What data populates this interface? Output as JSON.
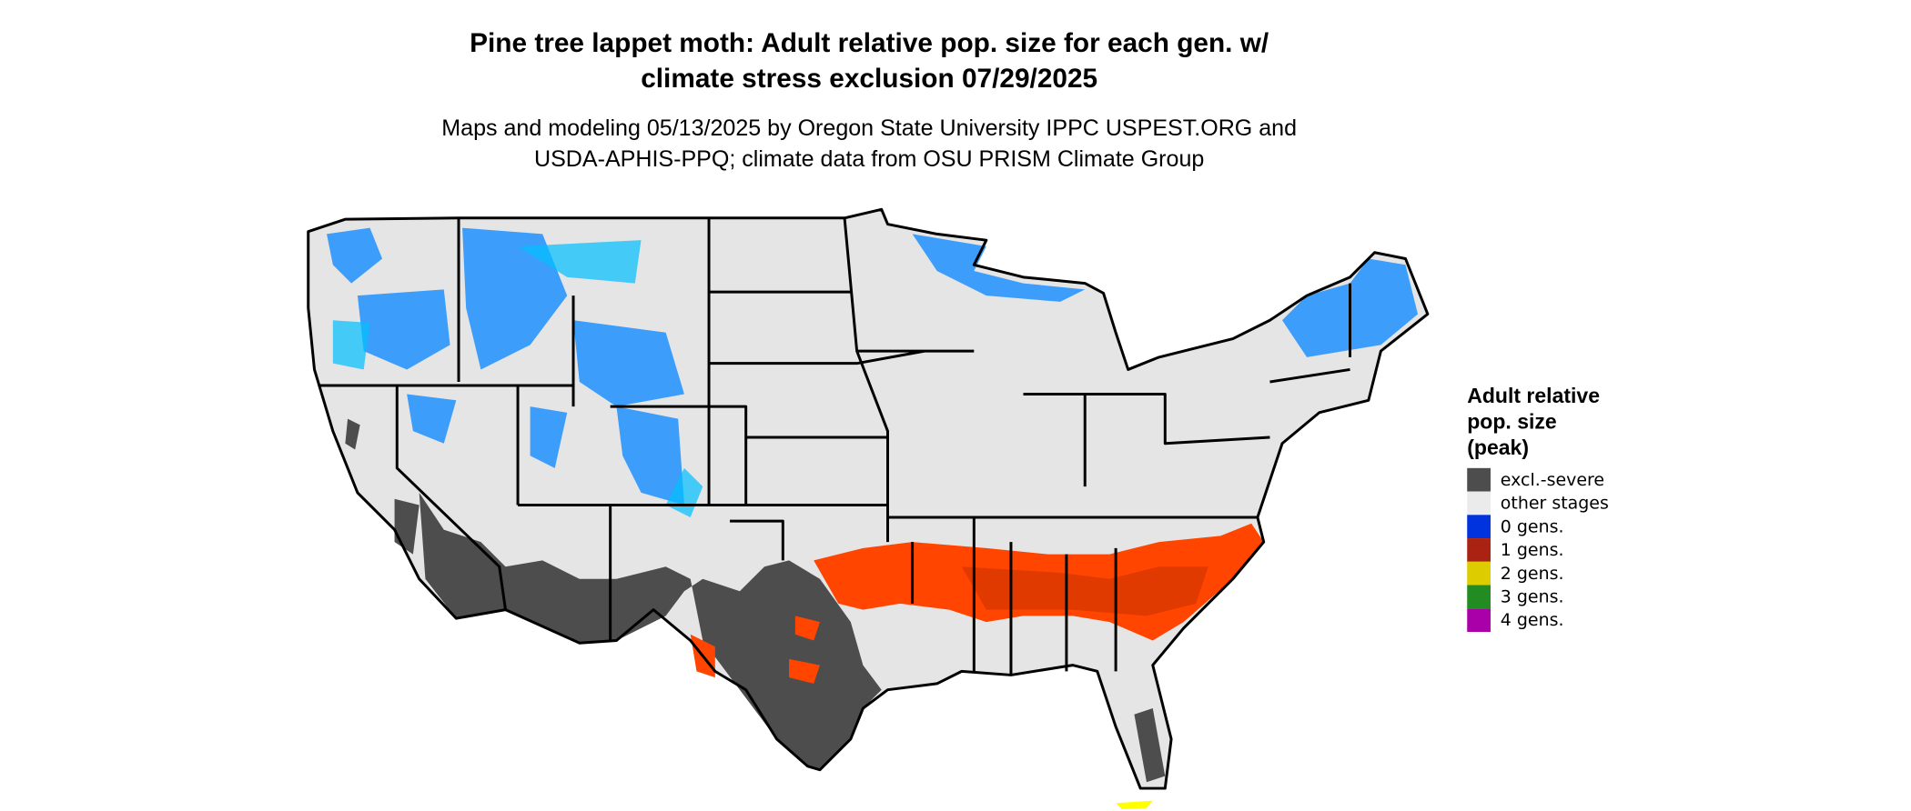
{
  "title": [
    "Pine tree lappet moth: Adult relative pop. size for each gen. w/",
    "climate stress exclusion 07/29/2025"
  ],
  "subtitle": [
    "Maps and modeling 05/13/2025 by Oregon State University IPPC USPEST.ORG and",
    "USDA-APHIS-PPQ; climate data from OSU PRISM Climate Group"
  ],
  "legend": {
    "title": [
      "Adult relative",
      "pop. size",
      "(peak)"
    ],
    "items": [
      {
        "label": "excl.-severe",
        "color": "#4d4d4d"
      },
      {
        "label": "other stages",
        "color": "#ebebeb"
      },
      {
        "label": "0 gens.",
        "color": "#0033dd"
      },
      {
        "label": "1 gens.",
        "color": "#aa2211"
      },
      {
        "label": "2 gens.",
        "color": "#ddcc00"
      },
      {
        "label": "3 gens.",
        "color": "#228b22"
      },
      {
        "label": "4 gens.",
        "color": "#aa00aa"
      }
    ]
  }
}
